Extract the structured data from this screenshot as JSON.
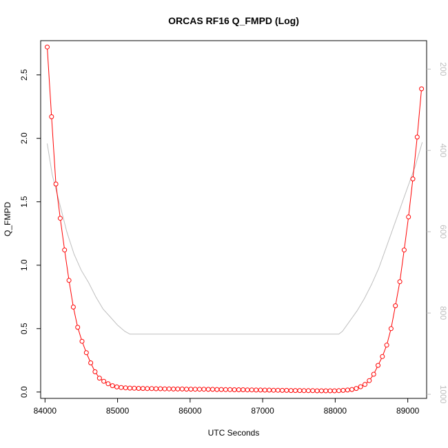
{
  "chart_data": {
    "type": "line",
    "title": "ORCAS RF16 Q_FMPD (Log)",
    "xlabel": "UTC Seconds",
    "ylabel": "Q_FMPD",
    "xlim": [
      83940,
      89260
    ],
    "ylim": [
      -0.05,
      2.77
    ],
    "x_ticks": [
      84000,
      85000,
      86000,
      87000,
      88000,
      89000
    ],
    "y_ticks": [
      0.0,
      0.5,
      1.0,
      1.5,
      2.0,
      2.5
    ],
    "x_tick_labels": [
      "84000",
      "85000",
      "86000",
      "87000",
      "88000",
      "89000"
    ],
    "y_tick_labels": [
      "0.0",
      "0.5",
      "1.0",
      "1.5",
      "2.0",
      "2.5"
    ],
    "y2_label": "",
    "y2_range_top_to_bottom": [
      130,
      1010
    ],
    "y2_ticks": [
      200,
      400,
      600,
      800,
      1000
    ],
    "y2_tick_labels": [
      "200",
      "400",
      "600",
      "800",
      "1000"
    ],
    "grid": false,
    "series": [
      {
        "color": "#ff0000",
        "marker": "open-circle",
        "x": [
          84030,
          84090,
          84150,
          84210,
          84270,
          84330,
          84390,
          84450,
          84510,
          84570,
          84630,
          84690,
          84750,
          84810,
          84870,
          84930,
          84990,
          85050,
          85110,
          85170,
          85230,
          85290,
          85350,
          85410,
          85470,
          85530,
          85590,
          85650,
          85710,
          85770,
          85830,
          85890,
          85950,
          86010,
          86070,
          86130,
          86190,
          86250,
          86310,
          86370,
          86430,
          86490,
          86550,
          86610,
          86670,
          86730,
          86790,
          86850,
          86910,
          86970,
          87030,
          87090,
          87150,
          87210,
          87270,
          87330,
          87390,
          87450,
          87510,
          87570,
          87630,
          87690,
          87750,
          87810,
          87870,
          87930,
          87990,
          88050,
          88110,
          88170,
          88230,
          88290,
          88350,
          88410,
          88470,
          88530,
          88590,
          88650,
          88710,
          88770,
          88830,
          88890,
          88950,
          89010,
          89070,
          89130,
          89190
        ],
        "y": [
          2.72,
          2.17,
          1.64,
          1.37,
          1.12,
          0.88,
          0.67,
          0.51,
          0.4,
          0.31,
          0.23,
          0.16,
          0.11,
          0.085,
          0.065,
          0.05,
          0.04,
          0.036,
          0.033,
          0.031,
          0.03,
          0.029,
          0.028,
          0.027,
          0.027,
          0.026,
          0.026,
          0.025,
          0.025,
          0.024,
          0.024,
          0.024,
          0.023,
          0.023,
          0.022,
          0.022,
          0.022,
          0.021,
          0.021,
          0.02,
          0.02,
          0.019,
          0.019,
          0.018,
          0.018,
          0.018,
          0.017,
          0.017,
          0.016,
          0.016,
          0.015,
          0.015,
          0.014,
          0.014,
          0.013,
          0.013,
          0.012,
          0.012,
          0.012,
          0.011,
          0.011,
          0.011,
          0.01,
          0.01,
          0.01,
          0.01,
          0.01,
          0.011,
          0.013,
          0.016,
          0.02,
          0.028,
          0.042,
          0.06,
          0.09,
          0.14,
          0.21,
          0.28,
          0.37,
          0.5,
          0.68,
          0.87,
          1.12,
          1.38,
          1.68,
          2.01,
          2.39
        ]
      },
      {
        "color": "#bebebe",
        "marker": "none",
        "axis": "right",
        "x": [
          84030,
          84100,
          84200,
          84300,
          84400,
          84500,
          84600,
          84700,
          84800,
          84900,
          85000,
          85100,
          85170,
          85300,
          86000,
          87000,
          87500,
          88000,
          88050,
          88100,
          88200,
          88300,
          88400,
          88500,
          88600,
          88700,
          88800,
          88900,
          89000,
          89100,
          89200
        ],
        "y": [
          383,
          460,
          530,
          600,
          655,
          695,
          725,
          760,
          790,
          810,
          830,
          845,
          852,
          852,
          852,
          852,
          852,
          852,
          852,
          845,
          820,
          795,
          765,
          730,
          690,
          640,
          590,
          540,
          490,
          440,
          380
        ]
      }
    ]
  }
}
